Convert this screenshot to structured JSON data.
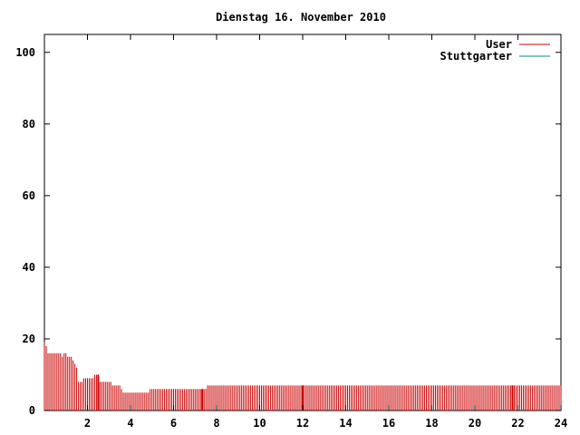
{
  "chart_data": {
    "type": "bar",
    "title": "Dienstag 16. November 2010",
    "xlabel": "",
    "ylabel": "",
    "xlim": [
      0,
      24
    ],
    "ylim": [
      0,
      105
    ],
    "x_ticks": [
      2,
      4,
      6,
      8,
      10,
      12,
      14,
      16,
      18,
      20,
      22,
      24
    ],
    "y_ticks": [
      0,
      20,
      40,
      60,
      80,
      100
    ],
    "grid": false,
    "legend_position": "top-right",
    "bar_interval_minutes": 5,
    "highlight_minutes": [
      150,
      440,
      720,
      1305
    ],
    "series": [
      {
        "name": "User",
        "color": "#cc0000",
        "values": [
          19,
          18,
          16,
          16,
          16,
          16,
          16,
          16,
          16,
          16,
          15,
          16,
          16,
          15,
          15,
          15,
          14,
          13,
          12,
          8,
          8,
          8,
          9,
          9,
          9,
          9,
          9,
          9,
          10,
          10,
          10,
          8,
          8,
          8,
          8,
          8,
          8,
          8,
          7,
          7,
          7,
          7,
          7,
          6,
          5,
          5,
          5,
          5,
          5,
          5,
          5,
          5,
          5,
          5,
          5,
          5,
          5,
          5,
          5,
          6,
          6,
          6,
          6,
          6,
          6,
          6,
          6,
          6,
          6,
          6,
          6,
          6,
          6,
          6,
          6,
          6,
          6,
          6,
          6,
          6,
          6,
          6,
          6,
          6,
          6,
          6,
          6,
          6,
          6,
          6,
          6,
          7,
          7,
          7,
          7,
          7,
          7,
          7,
          7,
          7,
          7,
          7,
          7,
          7,
          7,
          7,
          7,
          7,
          7,
          7,
          7,
          7,
          7,
          7,
          7,
          7,
          7,
          7,
          7,
          7,
          7,
          7,
          7,
          7,
          7,
          7,
          7,
          7,
          7,
          7,
          7,
          7,
          7,
          7,
          7,
          7,
          7,
          7,
          7,
          7,
          7,
          7,
          7,
          7,
          7,
          7,
          7,
          7,
          7,
          7,
          7,
          7,
          7,
          7,
          7,
          7,
          7,
          7,
          7,
          7,
          7,
          7,
          7,
          7,
          7,
          7,
          7,
          7,
          7,
          7,
          7,
          7,
          7,
          7,
          7,
          7,
          7,
          7,
          7,
          7,
          7,
          7,
          7,
          7,
          7,
          7,
          7,
          7,
          7,
          7,
          7,
          7,
          7,
          7,
          7,
          7,
          7,
          7,
          7,
          7,
          7,
          7,
          7,
          7,
          7,
          7,
          7,
          7,
          7,
          7,
          7,
          7,
          7,
          7,
          7,
          7,
          7,
          7,
          7,
          7,
          7,
          7,
          7,
          7,
          7,
          7,
          7,
          7,
          7,
          7,
          7,
          7,
          7,
          7,
          7,
          7,
          7,
          7,
          7,
          7,
          7,
          7,
          7,
          7,
          7,
          7,
          7,
          7,
          7,
          7,
          7,
          7,
          7,
          7,
          7,
          7,
          7,
          7,
          7,
          7,
          7,
          7,
          7,
          7,
          7,
          7,
          7,
          7,
          7,
          7,
          7,
          7,
          7,
          7,
          7,
          7,
          7,
          7,
          7,
          7,
          7,
          7,
          7,
          7,
          7,
          7,
          7,
          7,
          7,
          7,
          7,
          7,
          7,
          7,
          7,
          7,
          7,
          7,
          7,
          7,
          7,
          7,
          7,
          7,
          7
        ]
      },
      {
        "name": "Stuttgarter",
        "color": "#008b8b",
        "values": []
      }
    ]
  }
}
